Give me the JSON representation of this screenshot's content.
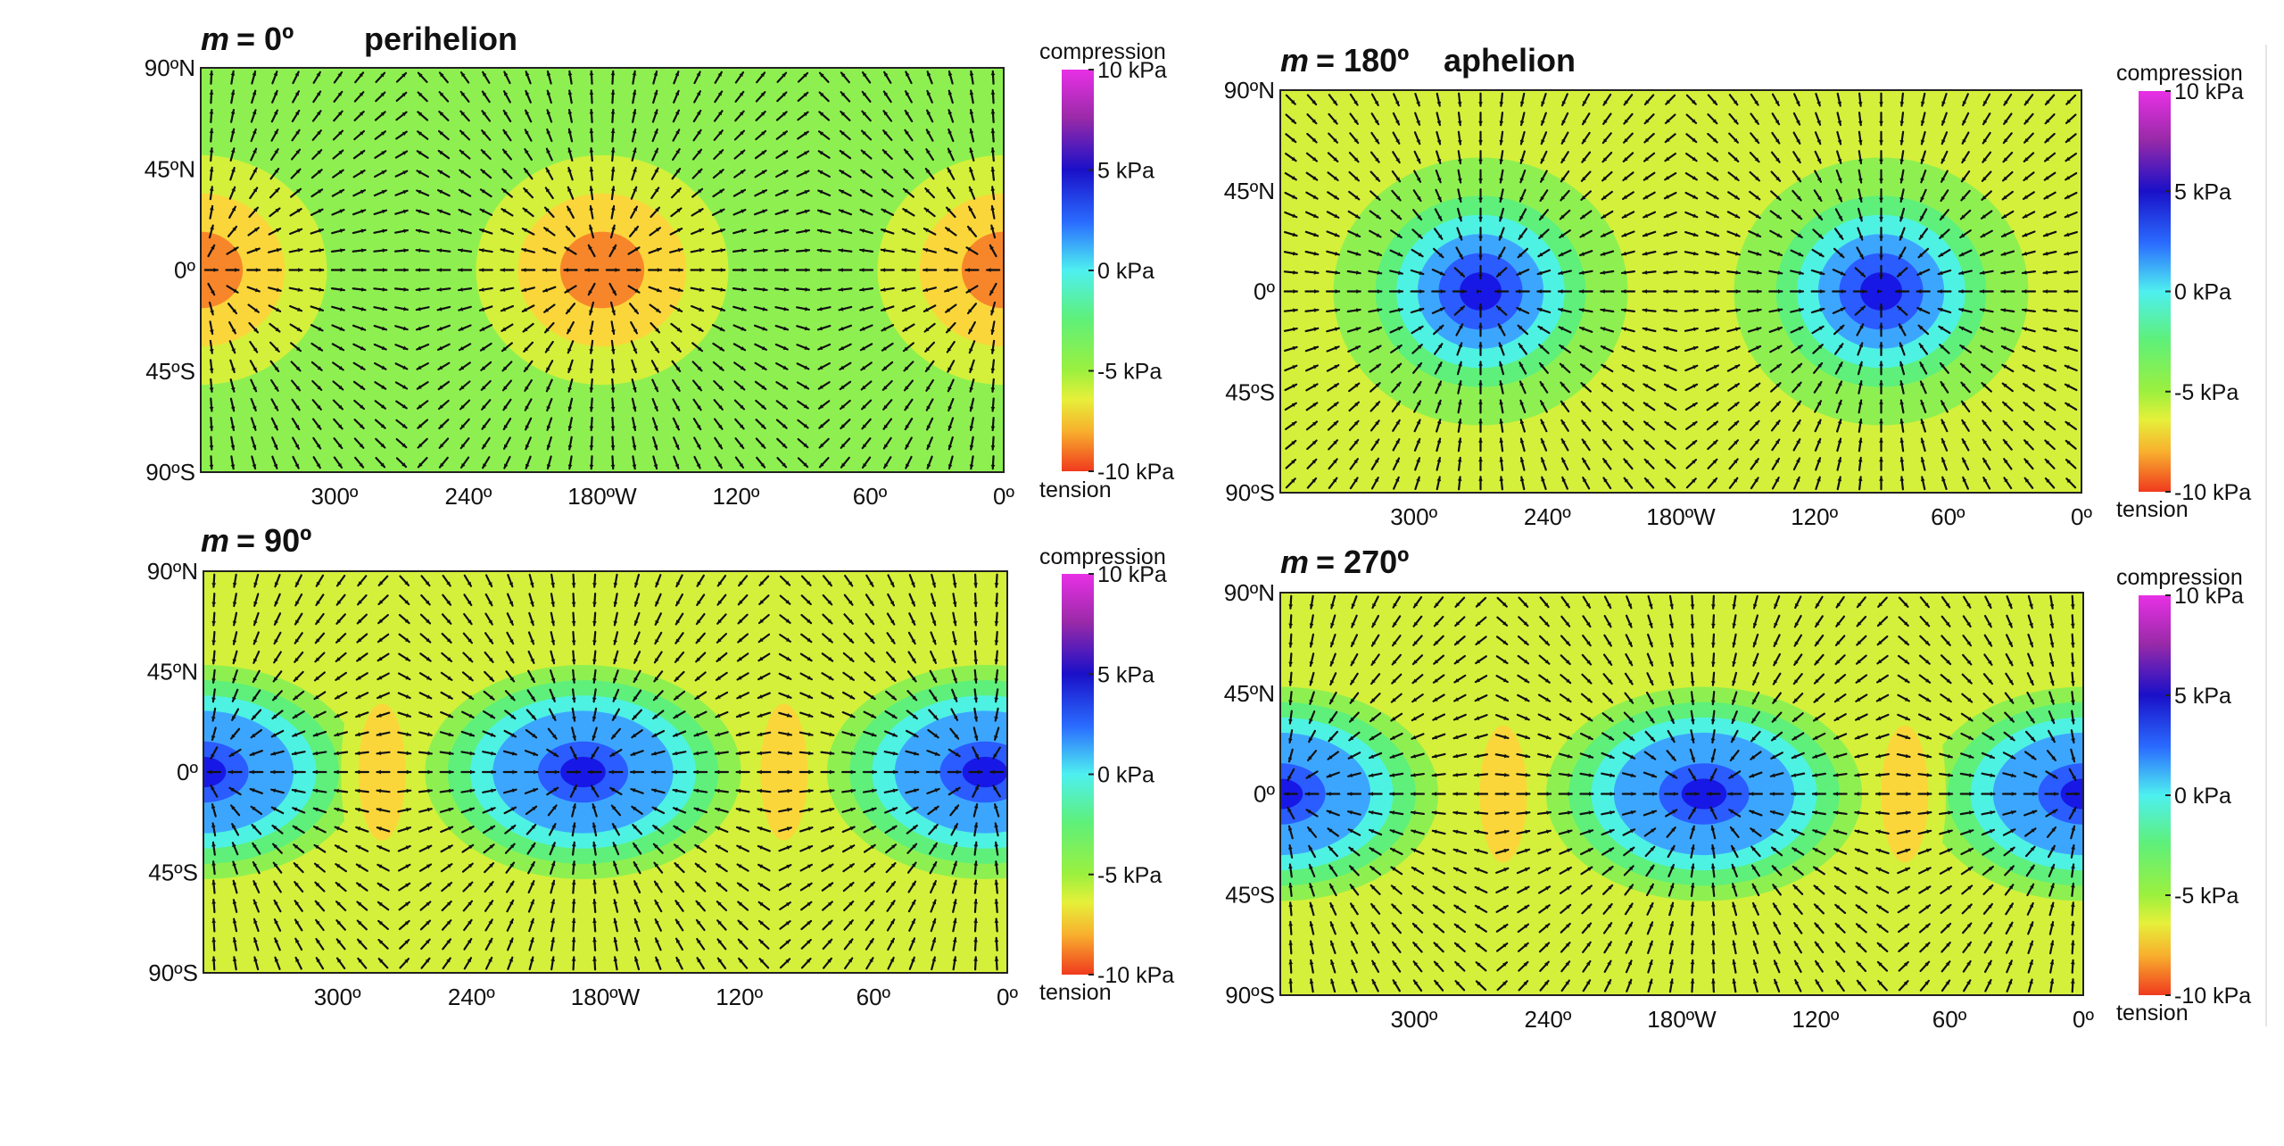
{
  "chart_data": [
    {
      "type": "heatmap",
      "title_var": "m",
      "title_value": "= 0º",
      "title_label": "perihelion",
      "mean_anomaly_deg": 0,
      "x_ticks": [
        "300º",
        "240º",
        "180ºW",
        "120º",
        "60º",
        "0º"
      ],
      "x_tick_values": [
        300,
        240,
        180,
        120,
        60,
        0
      ],
      "xlim": [
        360,
        0
      ],
      "y_ticks": [
        "90ºN",
        "45ºN",
        "0º",
        "45ºS",
        "90ºS"
      ],
      "y_tick_values": [
        90,
        45,
        0,
        -45,
        -90
      ],
      "ylim": [
        -90,
        90
      ],
      "stress_pattern": "tension centers",
      "centers_lon_deg": [
        360,
        180,
        0
      ],
      "center_value_kpa": -8.5,
      "background_value_kpa": -3.5,
      "colorbar": {
        "top_label": "compression",
        "bottom_label": "tension",
        "ticks": [
          "10 kPa",
          "5 kPa",
          "0 kPa",
          "-5 kPa",
          "-10 kPa"
        ],
        "tick_values": [
          10,
          5,
          0,
          -5,
          -10
        ]
      },
      "arrows": "radial divergent"
    },
    {
      "type": "heatmap",
      "title_var": "m",
      "title_value": "= 180º",
      "title_label": "aphelion",
      "mean_anomaly_deg": 180,
      "x_ticks": [
        "300º",
        "240º",
        "180ºW",
        "120º",
        "60º",
        "0º"
      ],
      "x_tick_values": [
        300,
        240,
        180,
        120,
        60,
        0
      ],
      "xlim": [
        360,
        0
      ],
      "y_ticks": [
        "90ºN",
        "45ºN",
        "0º",
        "45ºS",
        "90ºS"
      ],
      "y_tick_values": [
        90,
        45,
        0,
        -45,
        -90
      ],
      "ylim": [
        -90,
        90
      ],
      "stress_pattern": "compression centers",
      "centers_lon_deg": [
        270,
        90
      ],
      "center_value_kpa": 3.5,
      "background_value_kpa": -5.5,
      "colorbar": {
        "top_label": "compression",
        "bottom_label": "tension",
        "ticks": [
          "10 kPa",
          "5 kPa",
          "0 kPa",
          "-5 kPa",
          "-10 kPa"
        ],
        "tick_values": [
          10,
          5,
          0,
          -5,
          -10
        ]
      },
      "arrows": "radial convergent"
    },
    {
      "type": "heatmap",
      "title_var": "m",
      "title_value": "= 90º",
      "title_label": "",
      "mean_anomaly_deg": 90,
      "x_ticks": [
        "300º",
        "240º",
        "180ºW",
        "120º",
        "60º",
        "0º"
      ],
      "x_tick_values": [
        300,
        240,
        180,
        120,
        60,
        0
      ],
      "xlim": [
        360,
        0
      ],
      "y_ticks": [
        "90ºN",
        "45ºN",
        "0º",
        "45ºS",
        "90ºS"
      ],
      "y_tick_values": [
        90,
        45,
        0,
        -45,
        -90
      ],
      "ylim": [
        -90,
        90
      ],
      "stress_pattern": "alternating compression and tension",
      "compression_lon_deg": [
        360,
        190,
        10
      ],
      "tension_lon_deg": [
        280,
        100
      ],
      "compression_value_kpa": 3.5,
      "tension_value_kpa": -7,
      "background_value_kpa": -4.5,
      "colorbar": {
        "top_label": "compression",
        "bottom_label": "tension",
        "ticks": [
          "10 kPa",
          "5 kPa",
          "0 kPa",
          "-5 kPa",
          "-10 kPa"
        ],
        "tick_values": [
          10,
          5,
          0,
          -5,
          -10
        ]
      },
      "arrows": "flow toward compression centers"
    },
    {
      "type": "heatmap",
      "title_var": "m",
      "title_value": "= 270º",
      "title_label": "",
      "mean_anomaly_deg": 270,
      "x_ticks": [
        "300º",
        "240º",
        "180ºW",
        "120º",
        "60º",
        "0º"
      ],
      "x_tick_values": [
        300,
        240,
        180,
        120,
        60,
        0
      ],
      "xlim": [
        360,
        0
      ],
      "y_ticks": [
        "90ºN",
        "45ºN",
        "0º",
        "45ºS",
        "90ºS"
      ],
      "y_tick_values": [
        90,
        45,
        0,
        -45,
        -90
      ],
      "ylim": [
        -90,
        90
      ],
      "stress_pattern": "alternating compression and tension",
      "compression_lon_deg": [
        360,
        170,
        0
      ],
      "tension_lon_deg": [
        260,
        80
      ],
      "compression_value_kpa": 3.5,
      "tension_value_kpa": -7,
      "background_value_kpa": -4.5,
      "colorbar": {
        "top_label": "compression",
        "bottom_label": "tension",
        "ticks": [
          "10 kPa",
          "5 kPa",
          "0 kPa",
          "-5 kPa",
          "-10 kPa"
        ],
        "tick_values": [
          10,
          5,
          0,
          -5,
          -10
        ]
      },
      "arrows": "flow toward compression centers"
    }
  ],
  "colors": {
    "colormap": [
      "#f03a1e",
      "#f7862a",
      "#fbd63a",
      "#d5f03a",
      "#8ef050",
      "#5ef07a",
      "#4ef2e2",
      "#3ca6ff",
      "#2a5cff",
      "#1818e6",
      "#1a10b4",
      "#5a1a9e",
      "#9a2aa8",
      "#e030e0"
    ],
    "arrow": "#111111",
    "frame": "#222222"
  }
}
